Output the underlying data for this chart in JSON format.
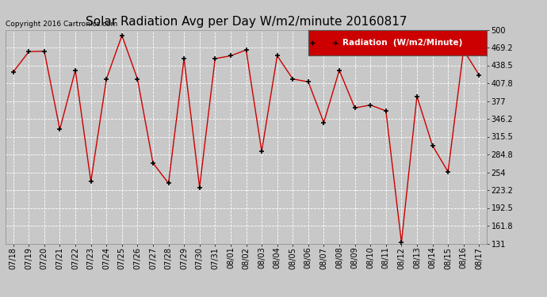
{
  "title": "Solar Radiation Avg per Day W/m2/minute 20160817",
  "copyright_text": "Copyright 2016 Cartronics.com",
  "legend_label": "Radiation  (W/m2/Minute)",
  "legend_bg": "#cc0000",
  "legend_text_color": "#ffffff",
  "line_color": "#cc0000",
  "marker_color": "#000000",
  "bg_color": "#c8c8c8",
  "plot_bg": "#c8c8c8",
  "grid_color": "#ffffff",
  "dates": [
    "07/18",
    "07/19",
    "07/20",
    "07/21",
    "07/22",
    "07/23",
    "07/24",
    "07/25",
    "07/26",
    "07/27",
    "07/28",
    "07/29",
    "07/30",
    "07/31",
    "08/01",
    "08/02",
    "08/03",
    "08/04",
    "08/05",
    "08/06",
    "08/07",
    "08/08",
    "08/09",
    "08/10",
    "08/11",
    "08/12",
    "08/13",
    "08/14",
    "08/15",
    "08/16",
    "08/17"
  ],
  "values": [
    427,
    462,
    463,
    328,
    430,
    238,
    415,
    490,
    415,
    270,
    235,
    450,
    228,
    450,
    455,
    465,
    290,
    455,
    415,
    410,
    340,
    430,
    365,
    370,
    360,
    133,
    385,
    300,
    255,
    465,
    422
  ],
  "ylim": [
    131.0,
    500.0
  ],
  "yticks": [
    131.0,
    161.8,
    192.5,
    223.2,
    254.0,
    284.8,
    315.5,
    346.2,
    377.0,
    407.8,
    438.5,
    469.2,
    500.0
  ],
  "title_fontsize": 11,
  "tick_fontsize": 7,
  "copyright_fontsize": 6.5,
  "legend_fontsize": 7.5
}
